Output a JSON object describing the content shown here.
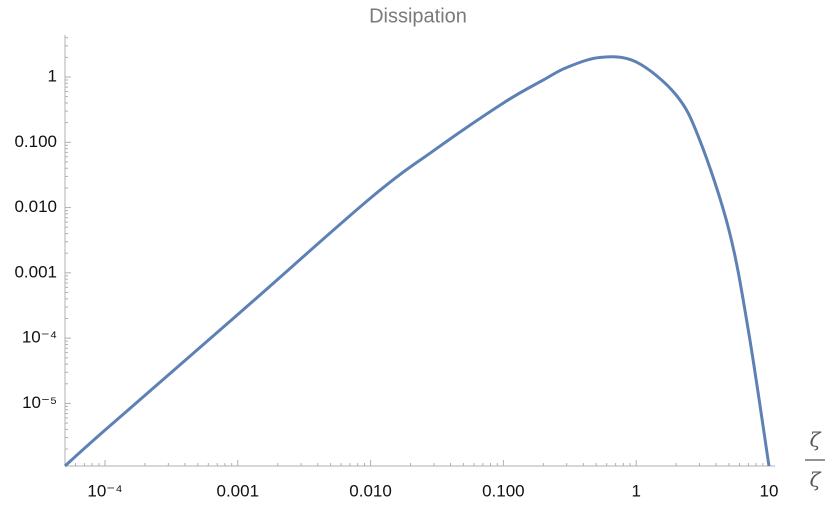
{
  "chart_data": {
    "type": "line",
    "title": "Dissipation",
    "x_label": {
      "numerator": "ζ",
      "denominator": "ζ"
    },
    "log_x": true,
    "log_y": true,
    "xlim": [
      5e-05,
      11.1
    ],
    "ylim": [
      1.1e-06,
      4.4
    ],
    "xticks": [
      {
        "value": 0.0001,
        "label": "10⁻⁴"
      },
      {
        "value": 0.001,
        "label": "0.001"
      },
      {
        "value": 0.01,
        "label": "0.010"
      },
      {
        "value": 0.1,
        "label": "0.100"
      },
      1,
      10
    ],
    "yticks": [
      {
        "value": 1e-05,
        "label": "10⁻⁵"
      },
      {
        "value": 0.0001,
        "label": "10⁻⁴"
      },
      {
        "value": 0.001,
        "label": "0.001"
      },
      {
        "value": 0.01,
        "label": "0.010"
      },
      {
        "value": 0.1,
        "label": "0.100"
      },
      1
    ],
    "minor_ticks": true,
    "series": [
      {
        "color": "#5e81b5",
        "x": [
          5e-05,
          0.0001,
          0.001,
          0.01,
          0.03,
          0.1,
          0.2,
          0.3,
          0.54,
          1,
          2,
          3,
          5,
          7,
          10
        ],
        "values": [
          1.1e-06,
          3.9e-06,
          0.00023,
          0.014,
          0.075,
          0.4,
          0.9,
          1.4,
          2.0,
          1.7,
          0.53,
          0.11,
          0.0045,
          0.00013,
          1.1e-06
        ]
      }
    ]
  }
}
